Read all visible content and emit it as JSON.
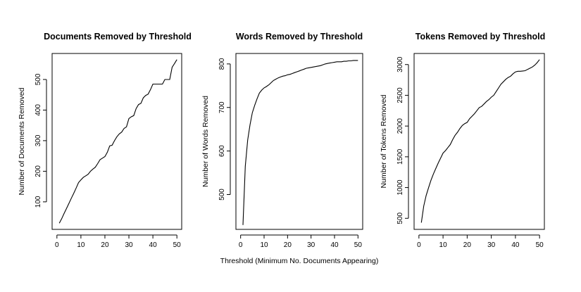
{
  "figure": {
    "shared_xlabel": "Threshold (Minimum No. Documents Appearing)"
  },
  "chart_data": [
    {
      "type": "line",
      "title": "Documents Removed by Threshold",
      "xlabel": "",
      "ylabel": "Number of Documents Removed",
      "xlim": [
        -2,
        52
      ],
      "ylim": [
        10,
        585
      ],
      "xticks": [
        0,
        10,
        20,
        30,
        40,
        50
      ],
      "yticks": [
        100,
        200,
        300,
        400,
        500
      ],
      "series": [
        {
          "x": [
            1,
            2,
            3,
            4,
            5,
            6,
            7,
            8,
            9,
            10,
            11,
            12,
            13,
            14,
            15,
            16,
            17,
            18,
            19,
            20,
            21,
            22,
            23,
            24,
            25,
            26,
            27,
            28,
            29,
            30,
            31,
            32,
            33,
            34,
            35,
            36,
            37,
            38,
            39,
            40,
            41,
            42,
            43,
            44,
            45,
            46,
            47,
            48,
            49,
            50
          ],
          "values": [
            30,
            45,
            62,
            78,
            95,
            112,
            128,
            145,
            163,
            172,
            180,
            185,
            190,
            200,
            207,
            213,
            225,
            238,
            243,
            248,
            262,
            283,
            285,
            300,
            313,
            322,
            328,
            340,
            345,
            372,
            378,
            382,
            405,
            418,
            422,
            440,
            448,
            452,
            467,
            485,
            485,
            485,
            485,
            485,
            500,
            500,
            500,
            540,
            552,
            565
          ]
        }
      ]
    },
    {
      "type": "line",
      "title": "Words Removed by Threshold",
      "xlabel": "",
      "ylabel": "Number of Words Removed",
      "xlim": [
        -2,
        52
      ],
      "ylim": [
        420,
        824
      ],
      "xticks": [
        0,
        10,
        20,
        30,
        40,
        50
      ],
      "yticks": [
        500,
        600,
        700,
        800
      ],
      "series": [
        {
          "x": [
            1,
            2,
            3,
            4,
            5,
            6,
            7,
            8,
            9,
            10,
            11,
            12,
            13,
            14,
            15,
            16,
            17,
            18,
            19,
            20,
            21,
            22,
            23,
            24,
            25,
            26,
            27,
            28,
            29,
            30,
            31,
            32,
            33,
            34,
            35,
            36,
            37,
            38,
            39,
            40,
            41,
            42,
            43,
            44,
            45,
            46,
            47,
            48,
            49,
            50
          ],
          "values": [
            430,
            565,
            625,
            660,
            688,
            705,
            720,
            733,
            740,
            745,
            748,
            752,
            757,
            762,
            765,
            768,
            770,
            772,
            773,
            775,
            776,
            778,
            780,
            782,
            784,
            786,
            788,
            790,
            791,
            792,
            793,
            794,
            795,
            796,
            798,
            800,
            801,
            802,
            803,
            804,
            805,
            805,
            805,
            806,
            806,
            807,
            807,
            808,
            808,
            808
          ]
        }
      ]
    },
    {
      "type": "line",
      "title": "Tokens Removed by Threshold",
      "xlabel": "",
      "ylabel": "Number of Tokens Removed",
      "xlim": [
        -2,
        52
      ],
      "ylim": [
        320,
        3180
      ],
      "xticks": [
        0,
        10,
        20,
        30,
        40,
        50
      ],
      "yticks": [
        500,
        1000,
        1500,
        2000,
        2500,
        3000
      ],
      "series": [
        {
          "x": [
            1,
            2,
            3,
            4,
            5,
            6,
            7,
            8,
            9,
            10,
            11,
            12,
            13,
            14,
            15,
            16,
            17,
            18,
            19,
            20,
            21,
            22,
            23,
            24,
            25,
            26,
            27,
            28,
            29,
            30,
            31,
            32,
            33,
            34,
            35,
            36,
            37,
            38,
            39,
            40,
            41,
            42,
            43,
            44,
            45,
            46,
            47,
            48,
            49,
            50
          ],
          "values": [
            430,
            700,
            870,
            1000,
            1120,
            1220,
            1310,
            1400,
            1480,
            1560,
            1600,
            1650,
            1700,
            1780,
            1850,
            1900,
            1960,
            2010,
            2040,
            2060,
            2120,
            2160,
            2200,
            2250,
            2300,
            2320,
            2360,
            2400,
            2430,
            2470,
            2500,
            2560,
            2620,
            2680,
            2720,
            2760,
            2790,
            2810,
            2850,
            2880,
            2890,
            2890,
            2895,
            2900,
            2920,
            2940,
            2960,
            2990,
            3030,
            3080
          ]
        }
      ]
    }
  ]
}
